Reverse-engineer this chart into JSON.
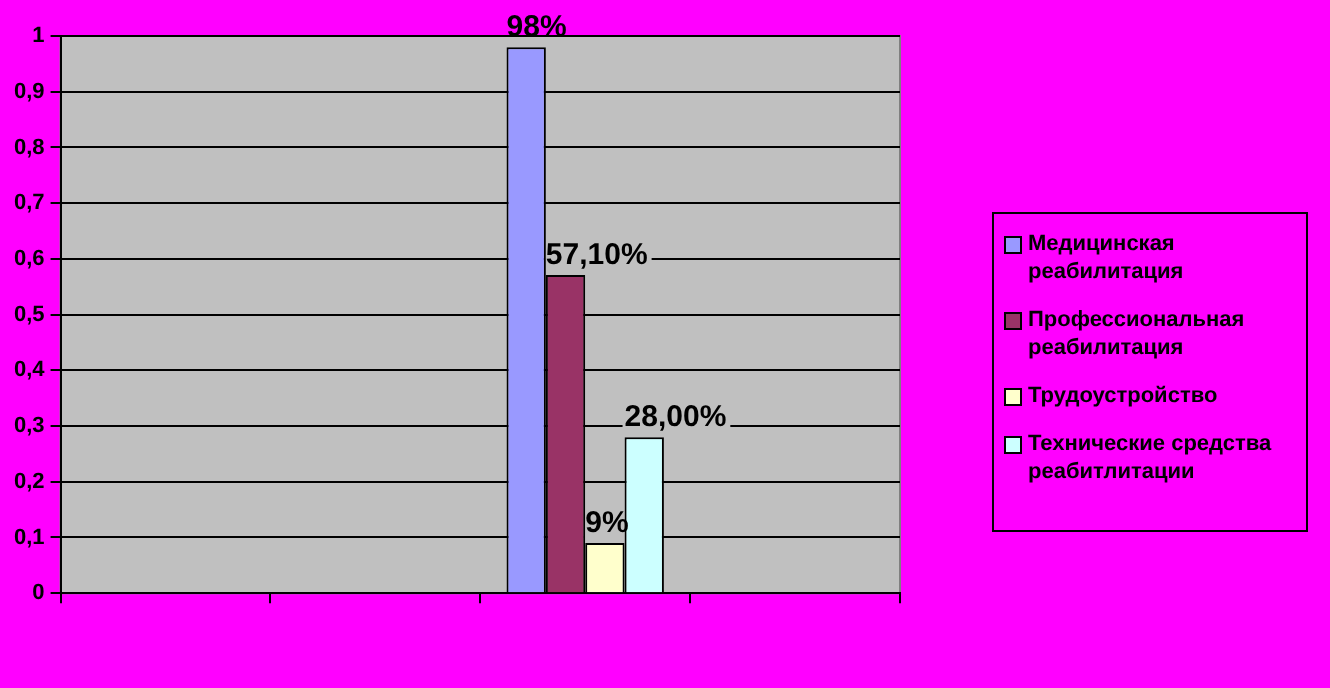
{
  "chart_data": {
    "type": "bar",
    "categories": [
      null,
      null,
      null,
      null
    ],
    "series": [
      {
        "name": "Медицинская реабилитация",
        "color": "#9999ff",
        "values": [
          null,
          null,
          0.98,
          null
        ],
        "value_labels": [
          null,
          null,
          "98%",
          null
        ]
      },
      {
        "name": "Профессиональная реабилитация",
        "color": "#993366",
        "values": [
          null,
          null,
          0.571,
          null
        ],
        "value_labels": [
          null,
          null,
          "57,10%",
          null
        ]
      },
      {
        "name": "Трудоустройство",
        "color": "#ffffcc",
        "values": [
          null,
          null,
          0.09,
          null
        ],
        "value_labels": [
          null,
          null,
          "9%",
          null
        ]
      },
      {
        "name": "Технические средства реабитлитации",
        "color": "#ccffff",
        "values": [
          null,
          null,
          0.28,
          null
        ],
        "value_labels": [
          null,
          null,
          "28,00%",
          null
        ]
      }
    ],
    "ylim": [
      0,
      1
    ],
    "yticks": [
      0,
      {
        "value": 0.1,
        "label": "0,1"
      },
      {
        "value": 0.2,
        "label": "0,2"
      },
      {
        "value": 0.3,
        "label": "0,3"
      },
      {
        "value": 0.4,
        "label": "0,4"
      },
      {
        "value": 0.5,
        "label": "0,5"
      },
      {
        "value": 0.6,
        "label": "0,6"
      },
      {
        "value": 0.7,
        "label": "0,7"
      },
      {
        "value": 0.8,
        "label": "0,8"
      },
      {
        "value": 0.9,
        "label": "0,9"
      },
      1
    ],
    "grid": "y",
    "legend": "right"
  }
}
